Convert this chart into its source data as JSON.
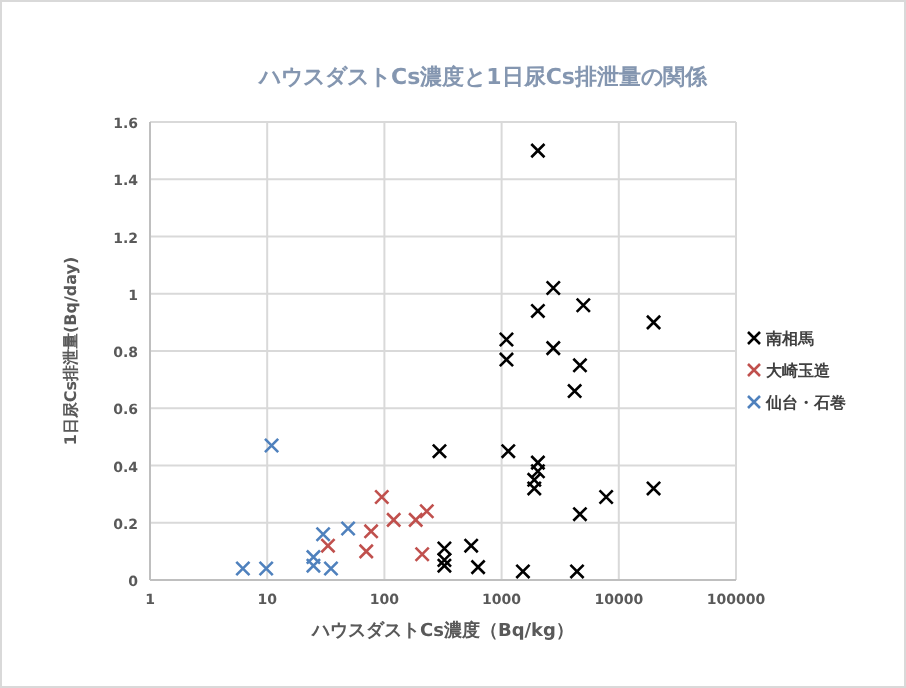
{
  "chart_data": {
    "type": "scatter",
    "title": "ハウスダストCs濃度と1日尿Cs排泄量の関係",
    "xlabel": "ハウスダストCs濃度（Bq/kg）",
    "ylabel": "1日尿Cs排泄量(Bq/day)",
    "log": "x",
    "xlim": [
      1,
      100000
    ],
    "xticks": [
      1,
      10,
      100,
      1000,
      10000,
      100000
    ],
    "ylim": [
      0,
      1.6
    ],
    "yticks": [
      0,
      0.2,
      0.4,
      0.6,
      0.8,
      1,
      1.2,
      1.4,
      1.6
    ],
    "grid": true,
    "legend": "right",
    "marker": "cross",
    "series": [
      {
        "name": "南相馬",
        "color": "#000000",
        "x": [
          295,
          325,
          325,
          325,
          550,
          630,
          1520,
          1100,
          1100,
          1140,
          2040,
          2040,
          2040,
          2040,
          1900,
          1900,
          2760,
          2760,
          4980,
          4660,
          4200,
          4660,
          4400,
          7800,
          19800,
          19800
        ],
        "values": [
          0.45,
          0.11,
          0.07,
          0.05,
          0.12,
          0.045,
          0.03,
          0.84,
          0.77,
          0.45,
          1.5,
          0.94,
          0.41,
          0.38,
          0.35,
          0.32,
          1.02,
          0.81,
          0.96,
          0.75,
          0.66,
          0.23,
          0.03,
          0.29,
          0.9,
          0.32
        ]
      },
      {
        "name": "大崎玉造",
        "color": "#c0504d",
        "x": [
          33,
          70,
          77,
          95,
          120,
          185,
          230,
          210
        ],
        "values": [
          0.12,
          0.1,
          0.17,
          0.29,
          0.21,
          0.21,
          0.24,
          0.09
        ]
      },
      {
        "name": "仙台・石巻",
        "color": "#4f81bd",
        "x": [
          6.2,
          9.8,
          10.9,
          24.8,
          24.8,
          30,
          35,
          49
        ],
        "values": [
          0.04,
          0.04,
          0.47,
          0.08,
          0.05,
          0.16,
          0.04,
          0.18
        ]
      }
    ]
  }
}
